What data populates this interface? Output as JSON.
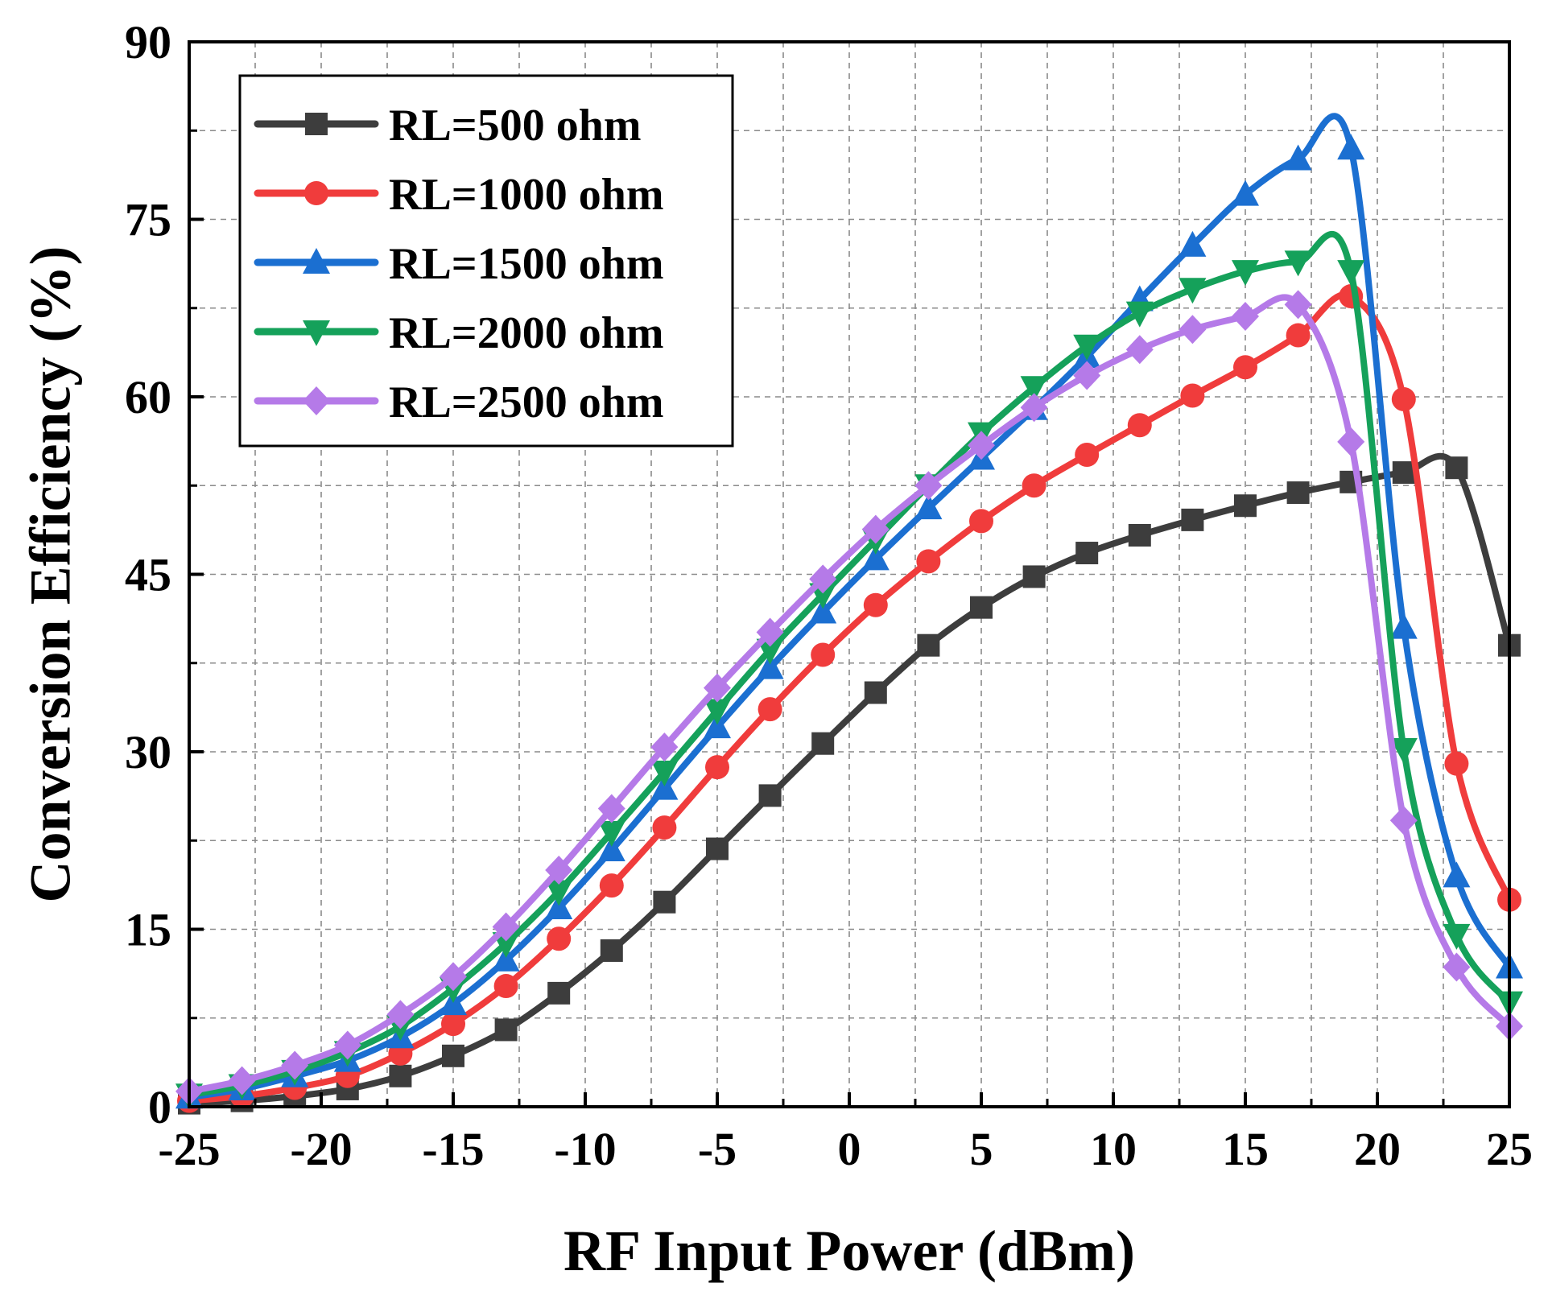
{
  "chart_data": {
    "type": "line",
    "title": "",
    "xlabel": "RF Input Power (dBm)",
    "ylabel": "Conversion Efficiency (%)",
    "xlim": [
      -25,
      25
    ],
    "ylim": [
      0,
      90
    ],
    "x_ticks": [
      -25,
      -20,
      -15,
      -10,
      -5,
      0,
      5,
      10,
      15,
      20,
      25
    ],
    "y_ticks": [
      0,
      15,
      30,
      45,
      60,
      75,
      90
    ],
    "grid": true,
    "legend_position": "top-left",
    "x": [
      -25,
      -23,
      -21,
      -19,
      -17,
      -15,
      -13,
      -11,
      -9,
      -7,
      -5,
      -3,
      -1,
      1,
      3,
      5,
      7,
      9,
      11,
      13,
      15,
      17,
      19,
      21,
      23,
      25
    ],
    "series": [
      {
        "name": "RL=500 ohm",
        "color": "#3d3d3d",
        "marker": "square",
        "x": [
          -25,
          -23,
          -21,
          -19,
          -17,
          -15,
          -13,
          -11,
          -9,
          -7,
          -5,
          -3,
          -1,
          1,
          3,
          5,
          7,
          9,
          11,
          13,
          15,
          17,
          19,
          21,
          23,
          25
        ],
        "values": [
          0.3,
          0.5,
          0.9,
          1.5,
          2.6,
          4.3,
          6.5,
          9.6,
          13.2,
          17.3,
          21.8,
          26.3,
          30.7,
          35.0,
          39.0,
          42.2,
          44.8,
          46.8,
          48.3,
          49.6,
          50.8,
          51.9,
          52.8,
          53.6,
          54.0,
          39.0
        ]
      },
      {
        "name": "RL=1000 ohm",
        "color": "#f03c3c",
        "marker": "circle",
        "x": [
          -25,
          -23,
          -21,
          -19,
          -17,
          -15,
          -13,
          -11,
          -9,
          -7,
          -5,
          -3,
          -1,
          1,
          3,
          5,
          7,
          9,
          11,
          13,
          15,
          17,
          19,
          21,
          23,
          25
        ],
        "values": [
          0.5,
          0.9,
          1.6,
          2.6,
          4.5,
          7.0,
          10.2,
          14.2,
          18.7,
          23.6,
          28.7,
          33.6,
          38.2,
          42.4,
          46.1,
          49.5,
          52.5,
          55.1,
          57.6,
          60.1,
          62.5,
          65.2,
          68.5,
          59.8,
          29.0,
          17.5
        ]
      },
      {
        "name": "RL=1500 ohm",
        "color": "#1b6fd1",
        "marker": "triangle-up",
        "x": [
          -25,
          -23,
          -21,
          -19,
          -17,
          -15,
          -13,
          -11,
          -9,
          -7,
          -5,
          -3,
          -1,
          1,
          3,
          5,
          7,
          9,
          11,
          13,
          15,
          17,
          19,
          21,
          23,
          25
        ],
        "values": [
          0.8,
          1.5,
          2.6,
          3.9,
          5.9,
          8.7,
          12.4,
          16.8,
          21.7,
          26.9,
          32.1,
          37.1,
          41.8,
          46.3,
          50.6,
          54.8,
          59.0,
          63.4,
          68.2,
          72.8,
          77.1,
          80.1,
          81.0,
          40.5,
          19.5,
          11.8
        ]
      },
      {
        "name": "RL=2000 ohm",
        "color": "#15a15a",
        "marker": "triangle-down",
        "x": [
          -25,
          -23,
          -21,
          -19,
          -17,
          -15,
          -13,
          -11,
          -9,
          -7,
          -5,
          -3,
          -1,
          1,
          3,
          5,
          7,
          9,
          11,
          13,
          15,
          17,
          19,
          21,
          23,
          25
        ],
        "values": [
          1.0,
          1.8,
          3.0,
          4.6,
          6.8,
          10.0,
          13.8,
          18.2,
          23.2,
          28.3,
          33.5,
          38.6,
          43.3,
          47.9,
          52.5,
          56.9,
          60.8,
          64.3,
          67.1,
          69.1,
          70.6,
          71.4,
          70.6,
          30.2,
          14.5,
          8.8
        ]
      },
      {
        "name": "RL=2500 ohm",
        "color": "#b57ae8",
        "marker": "diamond",
        "x": [
          -25,
          -23,
          -21,
          -19,
          -17,
          -15,
          -13,
          -11,
          -9,
          -7,
          -5,
          -3,
          -1,
          1,
          3,
          5,
          7,
          9,
          11,
          13,
          15,
          17,
          19,
          21,
          23,
          25
        ],
        "values": [
          1.3,
          2.2,
          3.5,
          5.2,
          7.8,
          11.0,
          15.2,
          20.0,
          25.2,
          30.4,
          35.4,
          40.1,
          44.6,
          48.8,
          52.5,
          55.9,
          59.1,
          61.8,
          64.0,
          65.7,
          66.8,
          67.8,
          56.2,
          24.2,
          11.8,
          6.8
        ]
      }
    ]
  }
}
